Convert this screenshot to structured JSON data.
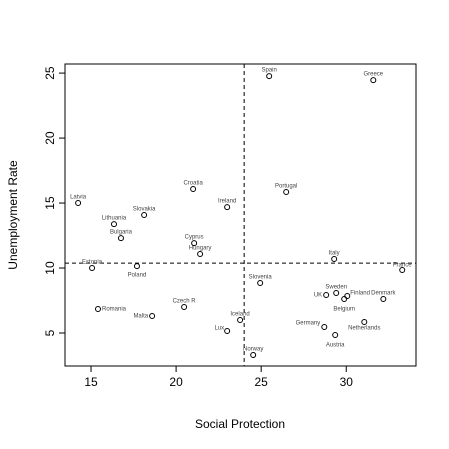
{
  "chart_data": {
    "type": "scatter",
    "xlabel": "Social Protection",
    "ylabel": "Unemployment Rate",
    "xlim": [
      13.47,
      34.1
    ],
    "ylim": [
      2.46,
      25.7
    ],
    "xticks": [
      15,
      20,
      25,
      30
    ],
    "yticks": [
      5,
      10,
      15,
      20,
      25
    ],
    "vline": 24.0,
    "hline": 10.38,
    "labels": [
      "Spain",
      "Greece",
      "Croatia",
      "Portugal",
      "Ireland",
      "Latvia",
      "Slovakia",
      "Lithuania",
      "Bulgaria",
      "Cyprus",
      "Hungary",
      "Estonia",
      "Poland",
      "Italy",
      "France",
      "Slovenia",
      "UK",
      "Sweden",
      "Finland",
      "Belgium",
      "Denmark",
      "Romania",
      "Czech R",
      "Malta",
      "Iceland",
      "Lux",
      "Germany",
      "Netherlands",
      "Austria",
      "Norway"
    ],
    "x": [
      25.47,
      31.59,
      21.0,
      26.47,
      23.0,
      14.24,
      18.12,
      16.35,
      16.76,
      21.06,
      21.41,
      15.06,
      17.7,
      29.29,
      33.29,
      24.94,
      28.82,
      29.41,
      30.06,
      29.88,
      32.18,
      15.41,
      20.47,
      18.59,
      23.76,
      23.0,
      28.71,
      31.06,
      29.35,
      24.53
    ],
    "values": [
      24.77,
      24.46,
      16.08,
      15.85,
      14.69,
      15.0,
      14.08,
      13.38,
      12.3,
      11.92,
      11.08,
      10.0,
      10.15,
      10.69,
      9.85,
      8.85,
      7.92,
      8.08,
      7.85,
      7.62,
      7.62,
      6.85,
      7.0,
      6.31,
      6.0,
      5.15,
      5.46,
      5.85,
      4.85,
      3.31
    ]
  }
}
